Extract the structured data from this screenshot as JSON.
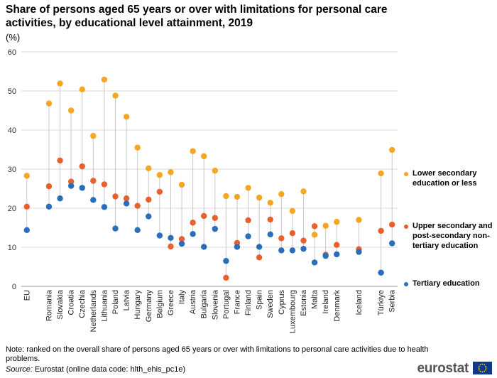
{
  "title": "Share of persons aged 65 years or over with limitations for personal care activities, by educational level attainment, 2019",
  "unit_label": "(%)",
  "note": "Note: ranked on the overall share of persons aged 65 years or over with limitations to personal care activities due to health problems.",
  "source_prefix": "Source:",
  "source_text": " Eurostat (online data code: hlth_ehis_pc1e)",
  "logo_text": "eurostat",
  "colors": {
    "lower": "#f5a623",
    "upper": "#e8612c",
    "tertiary": "#2a6ebb",
    "grid": "#d9d9d9",
    "stem": "#c8c8c8"
  },
  "chart_data": {
    "type": "scatter",
    "ylim": [
      0,
      60
    ],
    "yticks": [
      0,
      10,
      20,
      30,
      40,
      50,
      60
    ],
    "grid": true,
    "legend_position": "right",
    "categories": [
      "EU",
      "Romania",
      "Slovakia",
      "Croatia",
      "Czechia",
      "Netherlands",
      "Lithuania",
      "Poland",
      "Latvia",
      "Hungary",
      "Germany",
      "Belgium",
      "Greece",
      "Italy",
      "Austria",
      "Bulgaria",
      "Slovenia",
      "Portugal",
      "France",
      "Finland",
      "Spain",
      "Sweden",
      "Cyprus",
      "Luxembourg",
      "Estonia",
      "Malta",
      "Ireland",
      "Denmark",
      "Iceland",
      "Türkiye",
      "Serbia"
    ],
    "gap_after": [
      0,
      27,
      28
    ],
    "series": [
      {
        "name": "Lower secondary education or less",
        "key": "lower",
        "values": [
          28.3,
          46.8,
          51.9,
          45.0,
          50.4,
          38.5,
          52.9,
          48.8,
          43.4,
          35.5,
          30.2,
          28.5,
          29.2,
          26.0,
          34.6,
          33.3,
          29.6,
          23.1,
          22.9,
          25.2,
          22.7,
          21.4,
          23.6,
          19.3,
          24.3,
          13.2,
          15.5,
          16.5,
          17.0,
          28.9,
          34.9
        ]
      },
      {
        "name": "Upper secondary and post-secondary non-tertiary education",
        "key": "upper",
        "values": [
          20.4,
          25.6,
          32.2,
          26.8,
          30.7,
          27.0,
          26.1,
          23.0,
          22.5,
          20.6,
          22.2,
          24.2,
          10.2,
          12.1,
          16.3,
          18.0,
          17.5,
          2.2,
          11.1,
          16.9,
          7.4,
          17.1,
          12.3,
          13.6,
          11.7,
          15.4,
          8.1,
          10.6,
          9.5,
          14.2,
          15.8
        ]
      },
      {
        "name": "Tertiary education",
        "key": "tertiary",
        "values": [
          14.4,
          20.4,
          22.5,
          25.7,
          25.2,
          22.1,
          20.3,
          14.8,
          21.2,
          14.4,
          17.9,
          13.0,
          12.4,
          10.9,
          13.4,
          10.1,
          14.7,
          6.5,
          10.1,
          12.8,
          10.1,
          13.3,
          9.2,
          9.2,
          9.6,
          6.1,
          7.8,
          8.2,
          8.8,
          3.5,
          11.0
        ]
      }
    ]
  }
}
